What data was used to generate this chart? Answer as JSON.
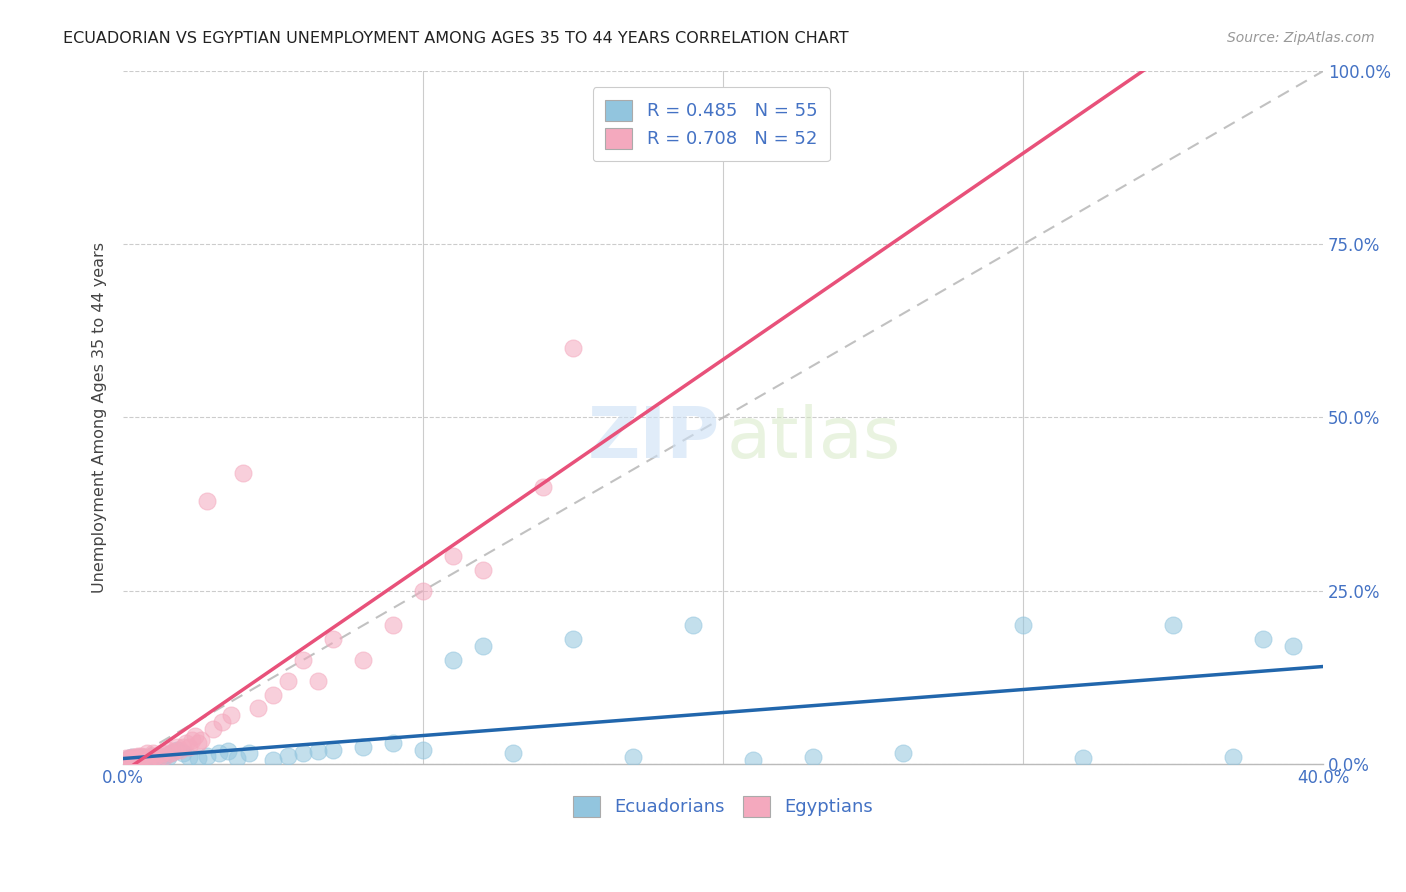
{
  "title": "ECUADORIAN VS EGYPTIAN UNEMPLOYMENT AMONG AGES 35 TO 44 YEARS CORRELATION CHART",
  "source": "Source: ZipAtlas.com",
  "ylabel": "Unemployment Among Ages 35 to 44 years",
  "xlim": [
    0.0,
    0.4
  ],
  "ylim": [
    0.0,
    1.0
  ],
  "xticks": [
    0.0,
    0.1,
    0.2,
    0.3,
    0.4
  ],
  "yticks": [
    0.0,
    0.25,
    0.5,
    0.75,
    1.0
  ],
  "xtick_labels_show": [
    "0.0%",
    "",
    "",
    "",
    "40.0%"
  ],
  "ecuadorians_R": 0.485,
  "ecuadorians_N": 55,
  "egyptians_R": 0.708,
  "egyptians_N": 52,
  "color_ecuadorians": "#92c5de",
  "color_ecuadorians_line": "#2166ac",
  "color_egyptians": "#f4a9be",
  "color_egyptians_line": "#e8517a",
  "color_diagonal": "#bbbbbb",
  "color_title": "#222222",
  "color_source": "#999999",
  "color_legend_text": "#4472c4",
  "color_axis_labels": "#4472c4",
  "grid_color": "#cccccc",
  "background_color": "#ffffff",
  "ecuadorians_x": [
    0.001,
    0.002,
    0.002,
    0.003,
    0.003,
    0.004,
    0.004,
    0.005,
    0.005,
    0.006,
    0.006,
    0.007,
    0.007,
    0.008,
    0.009,
    0.01,
    0.01,
    0.011,
    0.012,
    0.013,
    0.014,
    0.015,
    0.016,
    0.018,
    0.02,
    0.022,
    0.025,
    0.028,
    0.032,
    0.035,
    0.038,
    0.042,
    0.05,
    0.055,
    0.06,
    0.065,
    0.07,
    0.08,
    0.09,
    0.1,
    0.11,
    0.12,
    0.13,
    0.15,
    0.17,
    0.19,
    0.21,
    0.23,
    0.26,
    0.3,
    0.32,
    0.35,
    0.37,
    0.38,
    0.39
  ],
  "ecuadorians_y": [
    0.005,
    0.005,
    0.008,
    0.005,
    0.01,
    0.005,
    0.008,
    0.005,
    0.01,
    0.005,
    0.008,
    0.005,
    0.01,
    0.008,
    0.005,
    0.01,
    0.008,
    0.012,
    0.01,
    0.008,
    0.012,
    0.01,
    0.015,
    0.02,
    0.015,
    0.01,
    0.008,
    0.012,
    0.015,
    0.018,
    0.008,
    0.015,
    0.005,
    0.012,
    0.015,
    0.018,
    0.02,
    0.025,
    0.03,
    0.02,
    0.15,
    0.17,
    0.015,
    0.18,
    0.01,
    0.2,
    0.005,
    0.01,
    0.015,
    0.2,
    0.008,
    0.2,
    0.01,
    0.18,
    0.17
  ],
  "egyptians_x": [
    0.001,
    0.001,
    0.002,
    0.002,
    0.003,
    0.003,
    0.004,
    0.004,
    0.005,
    0.005,
    0.006,
    0.006,
    0.007,
    0.008,
    0.008,
    0.009,
    0.01,
    0.01,
    0.011,
    0.012,
    0.013,
    0.014,
    0.015,
    0.016,
    0.017,
    0.018,
    0.019,
    0.02,
    0.021,
    0.022,
    0.023,
    0.024,
    0.025,
    0.026,
    0.028,
    0.03,
    0.033,
    0.036,
    0.04,
    0.045,
    0.05,
    0.055,
    0.06,
    0.065,
    0.07,
    0.08,
    0.09,
    0.1,
    0.11,
    0.12,
    0.14,
    0.15
  ],
  "egyptians_y": [
    0.005,
    0.008,
    0.005,
    0.008,
    0.005,
    0.01,
    0.005,
    0.01,
    0.005,
    0.012,
    0.008,
    0.012,
    0.01,
    0.005,
    0.015,
    0.01,
    0.008,
    0.015,
    0.012,
    0.01,
    0.015,
    0.012,
    0.02,
    0.015,
    0.018,
    0.025,
    0.02,
    0.025,
    0.03,
    0.025,
    0.035,
    0.04,
    0.03,
    0.035,
    0.38,
    0.05,
    0.06,
    0.07,
    0.42,
    0.08,
    0.1,
    0.12,
    0.15,
    0.12,
    0.18,
    0.15,
    0.2,
    0.25,
    0.3,
    0.28,
    0.4,
    0.6
  ]
}
